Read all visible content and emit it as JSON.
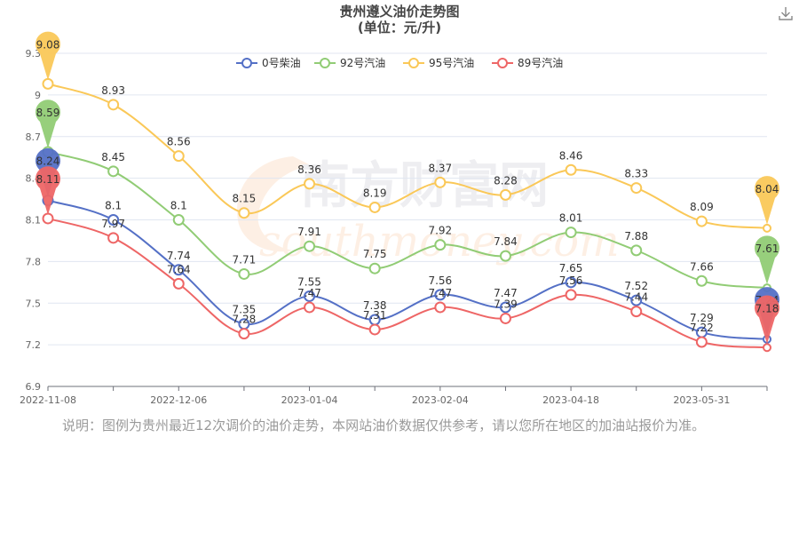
{
  "header": {
    "title": "贵州遵义油价走势图",
    "subtitle": "(单位：元/升)",
    "download_icon": "download-icon"
  },
  "watermark": {
    "cn": "南方财富网",
    "en": "southmoney.com"
  },
  "note": "说明：图例为贵州最近12次调价的油价走势，本网站油价数据仅供参考，请以您所在地区的加油站报价为准。",
  "chart_data": {
    "type": "line",
    "smooth": true,
    "title": "贵州遵义油价走势图",
    "subtitle": "(单位：元/升)",
    "xlabel": "",
    "ylabel": "",
    "ylim": [
      6.9,
      9.3
    ],
    "y_ticks": [
      6.9,
      7.2,
      7.5,
      7.8,
      8.1,
      8.4,
      8.7,
      9,
      9.3
    ],
    "grid": true,
    "legend_position": "top-center",
    "x_labels_shown": [
      "2022-11-08",
      "2022-12-06",
      "2023-01-04",
      "2023-02-04",
      "2023-04-18",
      "2023-05-31"
    ],
    "series": [
      {
        "name": "0号柴油",
        "color": "#5470c6",
        "values": [
          8.24,
          8.1,
          7.74,
          7.35,
          7.55,
          7.38,
          7.56,
          7.47,
          7.65,
          7.52,
          7.29,
          7.24
        ],
        "max": 8.24,
        "min": 7.24
      },
      {
        "name": "92号汽油",
        "color": "#91cc75",
        "values": [
          8.59,
          8.45,
          8.1,
          7.71,
          7.91,
          7.75,
          7.92,
          7.84,
          8.01,
          7.88,
          7.66,
          7.61
        ],
        "max": 8.59,
        "min": 7.61
      },
      {
        "name": "95号汽油",
        "color": "#fac858",
        "values": [
          9.08,
          8.93,
          8.56,
          8.15,
          8.36,
          8.19,
          8.37,
          8.28,
          8.46,
          8.33,
          8.09,
          8.04
        ],
        "max": 9.08,
        "min": 8.04
      },
      {
        "name": "89号汽油",
        "color": "#ee6666",
        "values": [
          8.11,
          7.97,
          7.64,
          7.28,
          7.47,
          7.31,
          7.47,
          7.39,
          7.56,
          7.44,
          7.22,
          7.18
        ],
        "max": 8.11,
        "min": 7.18
      }
    ]
  }
}
